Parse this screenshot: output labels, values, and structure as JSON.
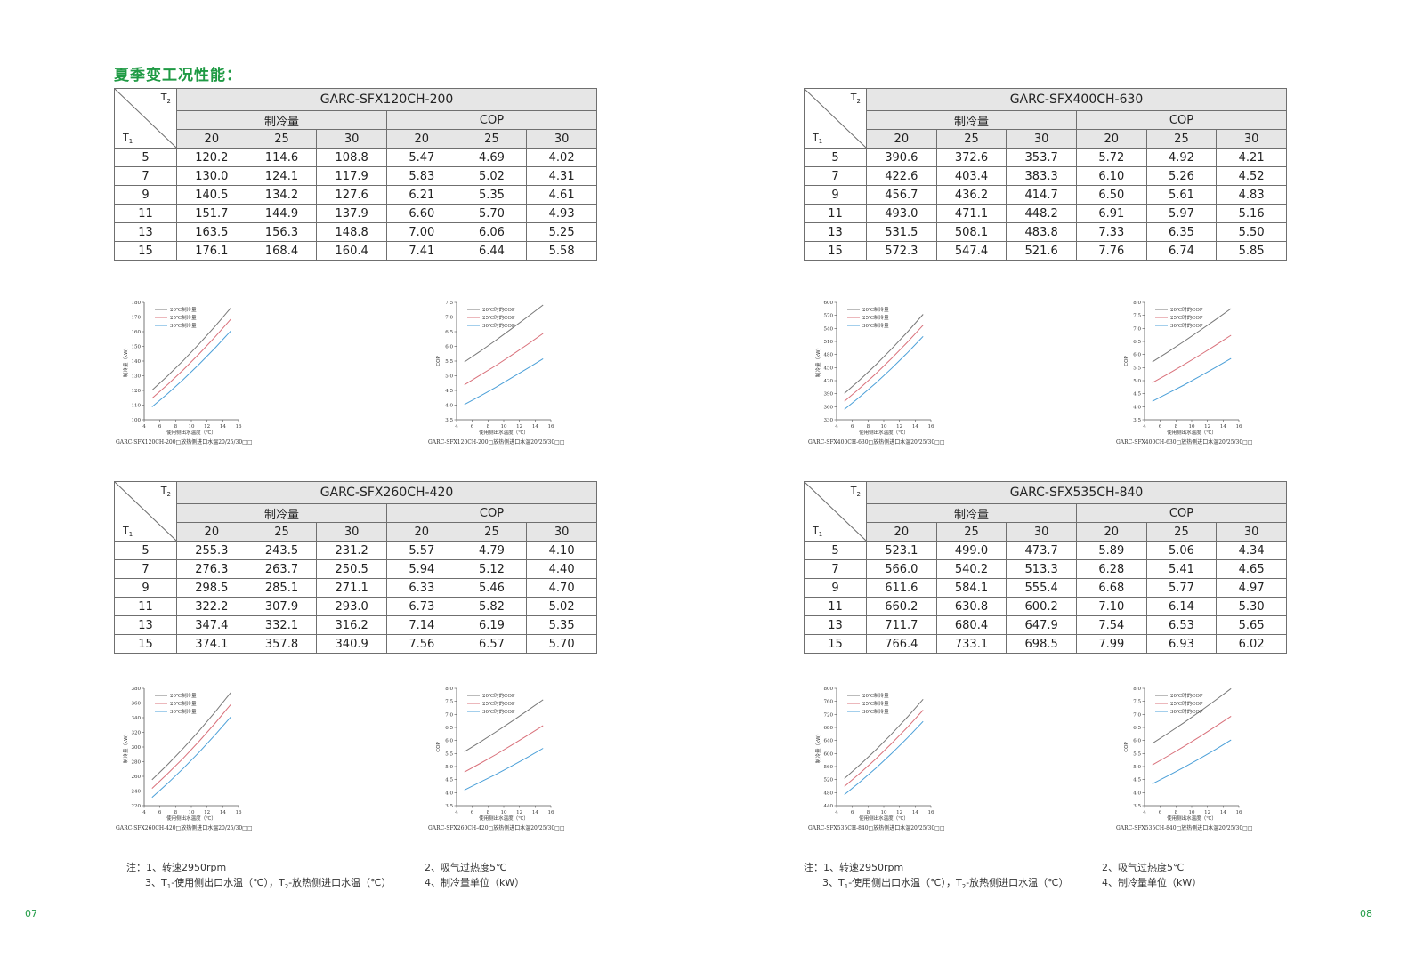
{
  "title": "夏季变工况性能：",
  "header": {
    "t2": "T",
    "t1": "T",
    "t2_sub": "2",
    "t1_sub": "1",
    "group_capacity": "制冷量",
    "group_cop": "COP",
    "sub_cols": [
      "20",
      "25",
      "30",
      "20",
      "25",
      "30"
    ]
  },
  "tables": [
    {
      "model": "GARC-SFX120CH-200",
      "rows": [
        [
          "5",
          "120.2",
          "114.6",
          "108.8",
          "5.47",
          "4.69",
          "4.02"
        ],
        [
          "7",
          "130.0",
          "124.1",
          "117.9",
          "5.83",
          "5.02",
          "4.31"
        ],
        [
          "9",
          "140.5",
          "134.2",
          "127.6",
          "6.21",
          "5.35",
          "4.61"
        ],
        [
          "11",
          "151.7",
          "144.9",
          "137.9",
          "6.60",
          "5.70",
          "4.93"
        ],
        [
          "13",
          "163.5",
          "156.3",
          "148.8",
          "7.00",
          "6.06",
          "5.25"
        ],
        [
          "15",
          "176.1",
          "168.4",
          "160.4",
          "7.41",
          "6.44",
          "5.58"
        ]
      ]
    },
    {
      "model": "GARC-SFX400CH-630",
      "rows": [
        [
          "5",
          "390.6",
          "372.6",
          "353.7",
          "5.72",
          "4.92",
          "4.21"
        ],
        [
          "7",
          "422.6",
          "403.4",
          "383.3",
          "6.10",
          "5.26",
          "4.52"
        ],
        [
          "9",
          "456.7",
          "436.2",
          "414.7",
          "6.50",
          "5.61",
          "4.83"
        ],
        [
          "11",
          "493.0",
          "471.1",
          "448.2",
          "6.91",
          "5.97",
          "5.16"
        ],
        [
          "13",
          "531.5",
          "508.1",
          "483.8",
          "7.33",
          "6.35",
          "5.50"
        ],
        [
          "15",
          "572.3",
          "547.4",
          "521.6",
          "7.76",
          "6.74",
          "5.85"
        ]
      ]
    },
    {
      "model": "GARC-SFX260CH-420",
      "rows": [
        [
          "5",
          "255.3",
          "243.5",
          "231.2",
          "5.57",
          "4.79",
          "4.10"
        ],
        [
          "7",
          "276.3",
          "263.7",
          "250.5",
          "5.94",
          "5.12",
          "4.40"
        ],
        [
          "9",
          "298.5",
          "285.1",
          "271.1",
          "6.33",
          "5.46",
          "4.70"
        ],
        [
          "11",
          "322.2",
          "307.9",
          "293.0",
          "6.73",
          "5.82",
          "5.02"
        ],
        [
          "13",
          "347.4",
          "332.1",
          "316.2",
          "7.14",
          "6.19",
          "5.35"
        ],
        [
          "15",
          "374.1",
          "357.8",
          "340.9",
          "7.56",
          "6.57",
          "5.70"
        ]
      ]
    },
    {
      "model": "GARC-SFX535CH-840",
      "rows": [
        [
          "5",
          "523.1",
          "499.0",
          "473.7",
          "5.89",
          "5.06",
          "4.34"
        ],
        [
          "7",
          "566.0",
          "540.2",
          "513.3",
          "6.28",
          "5.41",
          "4.65"
        ],
        [
          "9",
          "611.6",
          "584.1",
          "555.4",
          "6.68",
          "5.77",
          "4.97"
        ],
        [
          "11",
          "660.2",
          "630.8",
          "600.2",
          "7.10",
          "6.14",
          "5.30"
        ],
        [
          "13",
          "711.7",
          "680.4",
          "647.9",
          "7.54",
          "6.53",
          "5.65"
        ],
        [
          "15",
          "766.4",
          "733.1",
          "698.5",
          "7.99",
          "6.93",
          "6.02"
        ]
      ]
    }
  ],
  "chart_data": [
    {
      "type": "line",
      "x": [
        5,
        7,
        9,
        11,
        13,
        15
      ],
      "xlim": [
        4,
        16
      ],
      "xticks": [
        4,
        6,
        8,
        10,
        12,
        14,
        16
      ],
      "xlabel": "使用侧出水温度（℃）",
      "ylabel": "制冷量（kW）",
      "ylim": [
        100,
        180
      ],
      "yticks": [
        100,
        110,
        120,
        130,
        140,
        150,
        160,
        170,
        180
      ],
      "ydec": 0,
      "legend": "top-left",
      "caption": "GARC-SFX120CH-200□放热侧进口水温20/25/30□□",
      "series": [
        {
          "name": "20℃制冷量",
          "color": "#777777",
          "values": [
            120.2,
            130.0,
            140.5,
            151.7,
            163.5,
            176.1
          ]
        },
        {
          "name": "25℃制冷量",
          "color": "#d9707a",
          "values": [
            114.6,
            124.1,
            134.2,
            144.9,
            156.3,
            168.4
          ]
        },
        {
          "name": "30℃制冷量",
          "color": "#4a9fd8",
          "values": [
            108.8,
            117.9,
            127.6,
            137.9,
            148.8,
            160.4
          ]
        }
      ]
    },
    {
      "type": "line",
      "x": [
        5,
        7,
        9,
        11,
        13,
        15
      ],
      "xlim": [
        4,
        16
      ],
      "xticks": [
        4,
        6,
        8,
        10,
        12,
        14,
        16
      ],
      "xlabel": "使用侧出水温度（℃）",
      "ylabel": "COP",
      "ylim": [
        3.5,
        7.5
      ],
      "yticks": [
        3.5,
        4.0,
        4.5,
        5.0,
        5.5,
        6.0,
        6.5,
        7.0,
        7.5
      ],
      "ydec": 1,
      "legend": "top-left",
      "caption": "GARC-SFX120CH-200□放热侧进口水温20/25/30□□",
      "series": [
        {
          "name": "20℃时的COP",
          "color": "#777777",
          "values": [
            5.47,
            5.83,
            6.21,
            6.6,
            7.0,
            7.41
          ]
        },
        {
          "name": "25℃时的COP",
          "color": "#d9707a",
          "values": [
            4.69,
            5.02,
            5.35,
            5.7,
            6.06,
            6.44
          ]
        },
        {
          "name": "30℃时的COP",
          "color": "#4a9fd8",
          "values": [
            4.02,
            4.31,
            4.61,
            4.93,
            5.25,
            5.58
          ]
        }
      ]
    },
    {
      "type": "line",
      "x": [
        5,
        7,
        9,
        11,
        13,
        15
      ],
      "xlim": [
        4,
        16
      ],
      "xticks": [
        4,
        6,
        8,
        10,
        12,
        14,
        16
      ],
      "xlabel": "使用侧出水温度（℃）",
      "ylabel": "制冷量（kW）",
      "ylim": [
        330,
        600
      ],
      "yticks": [
        330,
        360,
        390,
        420,
        450,
        480,
        510,
        540,
        570,
        600
      ],
      "ydec": 0,
      "legend": "top-left",
      "caption": "GARC-SFX400CH-630□放热侧进口水温20/25/30□□",
      "series": [
        {
          "name": "20℃制冷量",
          "color": "#777777",
          "values": [
            390.6,
            422.6,
            456.7,
            493.0,
            531.5,
            572.3
          ]
        },
        {
          "name": "25℃制冷量",
          "color": "#d9707a",
          "values": [
            372.6,
            403.4,
            436.2,
            471.1,
            508.1,
            547.4
          ]
        },
        {
          "name": "30℃制冷量",
          "color": "#4a9fd8",
          "values": [
            353.7,
            383.3,
            414.7,
            448.2,
            483.8,
            521.6
          ]
        }
      ]
    },
    {
      "type": "line",
      "x": [
        5,
        7,
        9,
        11,
        13,
        15
      ],
      "xlim": [
        4,
        16
      ],
      "xticks": [
        4,
        6,
        8,
        10,
        12,
        14,
        16
      ],
      "xlabel": "使用侧出水温度（℃）",
      "ylabel": "COP",
      "ylim": [
        3.5,
        8.0
      ],
      "yticks": [
        3.5,
        4.0,
        4.5,
        5.0,
        5.5,
        6.0,
        6.5,
        7.0,
        7.5,
        8.0
      ],
      "ydec": 1,
      "legend": "top-left",
      "caption": "GARC-SFX400CH-630□放热侧进口水温20/25/30□□",
      "series": [
        {
          "name": "20℃时的COP",
          "color": "#777777",
          "values": [
            5.72,
            6.1,
            6.5,
            6.91,
            7.33,
            7.76
          ]
        },
        {
          "name": "25℃时的COP",
          "color": "#d9707a",
          "values": [
            4.92,
            5.26,
            5.61,
            5.97,
            6.35,
            6.74
          ]
        },
        {
          "name": "30℃时的COP",
          "color": "#4a9fd8",
          "values": [
            4.21,
            4.52,
            4.83,
            5.16,
            5.5,
            5.85
          ]
        }
      ]
    },
    {
      "type": "line",
      "x": [
        5,
        7,
        9,
        11,
        13,
        15
      ],
      "xlim": [
        4,
        16
      ],
      "xticks": [
        4,
        6,
        8,
        10,
        12,
        14,
        16
      ],
      "xlabel": "使用侧出水温度（℃）",
      "ylabel": "制冷量（kW）",
      "ylim": [
        220,
        380
      ],
      "yticks": [
        220,
        240,
        260,
        280,
        300,
        320,
        340,
        360,
        380
      ],
      "ydec": 0,
      "legend": "top-left",
      "caption": "GARC-SFX260CH-420□放热侧进口水温20/25/30□□",
      "series": [
        {
          "name": "20℃制冷量",
          "color": "#777777",
          "values": [
            255.3,
            276.3,
            298.5,
            322.2,
            347.4,
            374.1
          ]
        },
        {
          "name": "25℃制冷量",
          "color": "#d9707a",
          "values": [
            243.5,
            263.7,
            285.1,
            307.9,
            332.1,
            357.8
          ]
        },
        {
          "name": "30℃制冷量",
          "color": "#4a9fd8",
          "values": [
            231.2,
            250.5,
            271.1,
            293.0,
            316.2,
            340.9
          ]
        }
      ]
    },
    {
      "type": "line",
      "x": [
        5,
        7,
        9,
        11,
        13,
        15
      ],
      "xlim": [
        4,
        16
      ],
      "xticks": [
        4,
        6,
        8,
        10,
        12,
        14,
        16
      ],
      "xlabel": "使用侧出水温度（℃）",
      "ylabel": "COP",
      "ylim": [
        3.5,
        8.0
      ],
      "yticks": [
        3.5,
        4.0,
        4.5,
        5.0,
        5.5,
        6.0,
        6.5,
        7.0,
        7.5,
        8.0
      ],
      "ydec": 1,
      "legend": "top-left",
      "caption": "GARC-SFX260CH-420□放热侧进口水温20/25/30□□",
      "series": [
        {
          "name": "20℃时的COP",
          "color": "#777777",
          "values": [
            5.57,
            5.94,
            6.33,
            6.73,
            7.14,
            7.56
          ]
        },
        {
          "name": "25℃时的COP",
          "color": "#d9707a",
          "values": [
            4.79,
            5.12,
            5.46,
            5.82,
            6.19,
            6.57
          ]
        },
        {
          "name": "30℃时的COP",
          "color": "#4a9fd8",
          "values": [
            4.1,
            4.4,
            4.7,
            5.02,
            5.35,
            5.7
          ]
        }
      ]
    },
    {
      "type": "line",
      "x": [
        5,
        7,
        9,
        11,
        13,
        15
      ],
      "xlim": [
        4,
        16
      ],
      "xticks": [
        4,
        6,
        8,
        10,
        12,
        14,
        16
      ],
      "xlabel": "使用侧出水温度（℃）",
      "ylabel": "制冷量（kW）",
      "ylim": [
        440,
        800
      ],
      "yticks": [
        440,
        480,
        520,
        560,
        600,
        640,
        680,
        720,
        760,
        800
      ],
      "ydec": 0,
      "legend": "top-left",
      "caption": "GARC-SFX535CH-840□放热侧进口水温20/25/30□□",
      "series": [
        {
          "name": "20℃制冷量",
          "color": "#777777",
          "values": [
            523.1,
            566.0,
            611.6,
            660.2,
            711.7,
            766.4
          ]
        },
        {
          "name": "25℃制冷量",
          "color": "#d9707a",
          "values": [
            499.0,
            540.2,
            584.1,
            630.8,
            680.4,
            733.1
          ]
        },
        {
          "name": "30℃制冷量",
          "color": "#4a9fd8",
          "values": [
            473.7,
            513.3,
            555.4,
            600.2,
            647.9,
            698.5
          ]
        }
      ]
    },
    {
      "type": "line",
      "x": [
        5,
        7,
        9,
        11,
        13,
        15
      ],
      "xlim": [
        4,
        16
      ],
      "xticks": [
        4,
        6,
        8,
        10,
        12,
        14,
        16
      ],
      "xlabel": "使用侧出水温度（℃）",
      "ylabel": "COP",
      "ylim": [
        3.5,
        8.0
      ],
      "yticks": [
        3.5,
        4.0,
        4.5,
        5.0,
        5.5,
        6.0,
        6.5,
        7.0,
        7.5,
        8.0
      ],
      "ydec": 1,
      "legend": "top-left",
      "caption": "GARC-SFX535CH-840□放热侧进口水温20/25/30□□",
      "series": [
        {
          "name": "20℃时的COP",
          "color": "#777777",
          "values": [
            5.89,
            6.28,
            6.68,
            7.1,
            7.54,
            7.99
          ]
        },
        {
          "name": "25℃时的COP",
          "color": "#d9707a",
          "values": [
            5.06,
            5.41,
            5.77,
            6.14,
            6.53,
            6.93
          ]
        },
        {
          "name": "30℃时的COP",
          "color": "#4a9fd8",
          "values": [
            4.34,
            4.65,
            4.97,
            5.3,
            5.65,
            6.02
          ]
        }
      ]
    }
  ],
  "notes": {
    "n1": "注：1、转速2950rpm",
    "n2": "2、吸气过热度5℃",
    "n3_a": "3、T",
    "n3_sub1": "1",
    "n3_b": "-使用侧出口水温（℃），T",
    "n3_sub2": "2",
    "n3_c": "-放热侧进口水温（℃）",
    "n4": "4、制冷量单位（kW）"
  },
  "page_numbers": {
    "left": "07",
    "right": "08"
  },
  "colors": {
    "title_green": "#1f9a44",
    "header_grey": "#e6e6e6",
    "line_20": "#777777",
    "line_25": "#d9707a",
    "line_30": "#4a9fd8"
  }
}
